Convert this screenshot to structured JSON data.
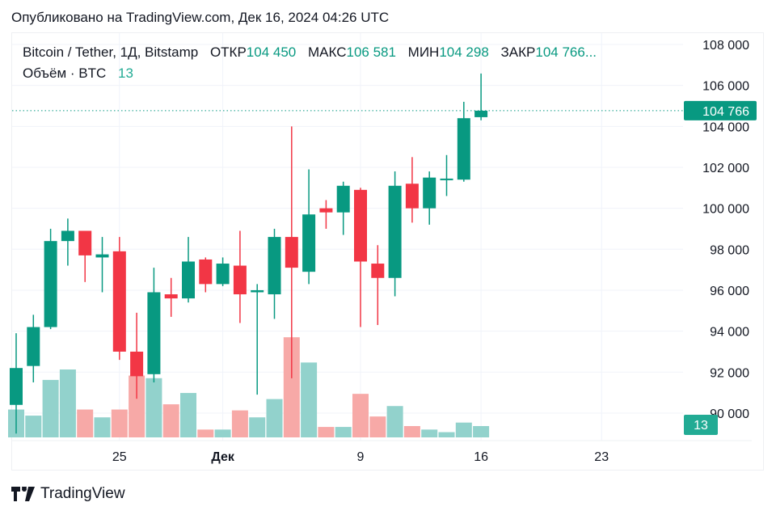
{
  "published": "Опубликовано на TradingView.com, Дек 16, 2024 04:26 UTC",
  "legend": {
    "symbol": "Bitcoin / Tether, 1Д, Bitstamp",
    "open_label": "ОТКР",
    "open": "104 450",
    "high_label": "МАКС",
    "high": "106 581",
    "low_label": "МИН",
    "low": "104 298",
    "close_label": "ЗАКР",
    "close": "104 766...",
    "volume_label": "Объём · BTC",
    "volume": "13"
  },
  "brand": "TradingView",
  "colors": {
    "up": "#089981",
    "down": "#f23645",
    "up_volume": "#92d2cc",
    "down_volume": "#f7a9a7",
    "grid": "#f0f3fa"
  },
  "chart_data": {
    "type": "candlestick",
    "ylim": [
      89000,
      108600
    ],
    "y_ticks": [
      "108 000",
      "106 000",
      "104 000",
      "102 000",
      "100 000",
      "98 000",
      "96 000",
      "94 000",
      "92 000",
      "90 000"
    ],
    "y_tick_values": [
      108000,
      106000,
      104000,
      102000,
      100000,
      98000,
      96000,
      94000,
      92000,
      90000
    ],
    "x_ticks": [
      {
        "label": "25",
        "date": "2024-11-25"
      },
      {
        "label": "Дек",
        "date": "2024-12-01",
        "bold": true
      },
      {
        "label": "9",
        "date": "2024-12-09"
      },
      {
        "label": "16",
        "date": "2024-12-16"
      },
      {
        "label": "23",
        "date": "2024-12-23"
      }
    ],
    "last_price_label": "104 766",
    "last_price": 104766,
    "last_volume_label": "13",
    "candles": [
      {
        "date": "2024-11-19",
        "o": 90400,
        "h": 93900,
        "l": 89000,
        "c": 92200,
        "v": 32
      },
      {
        "date": "2024-11-20",
        "o": 92300,
        "h": 94800,
        "l": 91500,
        "c": 94200,
        "v": 25
      },
      {
        "date": "2024-11-21",
        "o": 94200,
        "h": 99000,
        "l": 94100,
        "c": 98400,
        "v": 66
      },
      {
        "date": "2024-11-22",
        "o": 98400,
        "h": 99500,
        "l": 97200,
        "c": 98900,
        "v": 78
      },
      {
        "date": "2024-11-23",
        "o": 98900,
        "h": 98900,
        "l": 96400,
        "c": 97700,
        "v": 32
      },
      {
        "date": "2024-11-24",
        "o": 97600,
        "h": 98600,
        "l": 95900,
        "c": 97750,
        "v": 23
      },
      {
        "date": "2024-11-25",
        "o": 97900,
        "h": 98600,
        "l": 92600,
        "c": 93000,
        "v": 32
      },
      {
        "date": "2024-11-26",
        "o": 93000,
        "h": 94900,
        "l": 90700,
        "c": 91800,
        "v": 71
      },
      {
        "date": "2024-11-27",
        "o": 91900,
        "h": 97100,
        "l": 91500,
        "c": 95900,
        "v": 68
      },
      {
        "date": "2024-11-28",
        "o": 95800,
        "h": 96600,
        "l": 94700,
        "c": 95600,
        "v": 38
      },
      {
        "date": "2024-11-29",
        "o": 95600,
        "h": 98600,
        "l": 95400,
        "c": 97400,
        "v": 51
      },
      {
        "date": "2024-11-30",
        "o": 97500,
        "h": 97600,
        "l": 95900,
        "c": 96300,
        "v": 9
      },
      {
        "date": "2024-12-01",
        "o": 96300,
        "h": 97600,
        "l": 96200,
        "c": 97300,
        "v": 9
      },
      {
        "date": "2024-12-02",
        "o": 97200,
        "h": 98900,
        "l": 94400,
        "c": 95800,
        "v": 31
      },
      {
        "date": "2024-12-03",
        "o": 95900,
        "h": 96300,
        "l": 90900,
        "c": 96000,
        "v": 23
      },
      {
        "date": "2024-12-04",
        "o": 95800,
        "h": 99000,
        "l": 94600,
        "c": 98600,
        "v": 44
      },
      {
        "date": "2024-12-05",
        "o": 98600,
        "h": 104000,
        "l": 91700,
        "c": 97100,
        "v": 115
      },
      {
        "date": "2024-12-06",
        "o": 96900,
        "h": 101900,
        "l": 96300,
        "c": 99700,
        "v": 86
      },
      {
        "date": "2024-12-07",
        "o": 100000,
        "h": 100400,
        "l": 99000,
        "c": 99800,
        "v": 12
      },
      {
        "date": "2024-12-08",
        "o": 99800,
        "h": 101300,
        "l": 98700,
        "c": 101100,
        "v": 12
      },
      {
        "date": "2024-12-09",
        "o": 100900,
        "h": 101000,
        "l": 94200,
        "c": 97400,
        "v": 50
      },
      {
        "date": "2024-12-10",
        "o": 97300,
        "h": 98200,
        "l": 94300,
        "c": 96600,
        "v": 24
      },
      {
        "date": "2024-12-11",
        "o": 96600,
        "h": 101800,
        "l": 95700,
        "c": 101100,
        "v": 36
      },
      {
        "date": "2024-12-12",
        "o": 101200,
        "h": 102500,
        "l": 99300,
        "c": 100000,
        "v": 13
      },
      {
        "date": "2024-12-13",
        "o": 100000,
        "h": 101800,
        "l": 99200,
        "c": 101500,
        "v": 9
      },
      {
        "date": "2024-12-14",
        "o": 101400,
        "h": 102600,
        "l": 100600,
        "c": 101450,
        "v": 6
      },
      {
        "date": "2024-12-15",
        "o": 101400,
        "h": 105200,
        "l": 101300,
        "c": 104400,
        "v": 17
      },
      {
        "date": "2024-12-16",
        "o": 104450,
        "h": 106581,
        "l": 104298,
        "c": 104766,
        "v": 13
      }
    ]
  }
}
